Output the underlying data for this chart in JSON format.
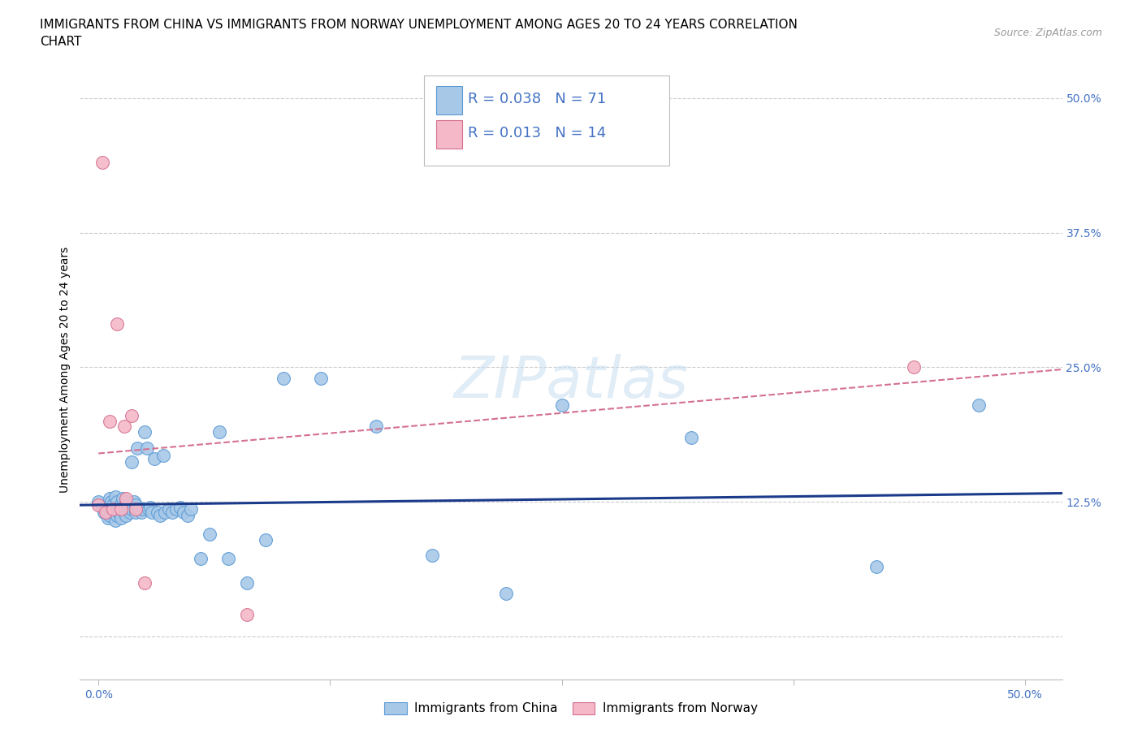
{
  "title_line1": "IMMIGRANTS FROM CHINA VS IMMIGRANTS FROM NORWAY UNEMPLOYMENT AMONG AGES 20 TO 24 YEARS CORRELATION",
  "title_line2": "CHART",
  "source_text": "Source: ZipAtlas.com",
  "ylabel": "Unemployment Among Ages 20 to 24 years",
  "x_ticks": [
    0.0,
    0.125,
    0.25,
    0.375,
    0.5
  ],
  "y_ticks": [
    0.0,
    0.125,
    0.25,
    0.375,
    0.5
  ],
  "xlim": [
    -0.01,
    0.52
  ],
  "ylim": [
    -0.04,
    0.535
  ],
  "china_color": "#a8c8e8",
  "china_edge_color": "#5b9bd5",
  "norway_color": "#f4b8c8",
  "norway_edge_color": "#d47090",
  "china_line_color": "#1a3a8a",
  "norway_line_color": "#d47090",
  "grid_color": "#cccccc",
  "background_color": "#ffffff",
  "watermark": "ZIPatlas",
  "r_color": "#4472c4",
  "legend_label_china": "Immigrants from China",
  "legend_label_norway": "Immigrants from Norway",
  "china_scatter_x": [
    0.0,
    0.002,
    0.003,
    0.004,
    0.005,
    0.005,
    0.006,
    0.006,
    0.007,
    0.007,
    0.008,
    0.008,
    0.009,
    0.009,
    0.01,
    0.01,
    0.01,
    0.011,
    0.011,
    0.012,
    0.012,
    0.013,
    0.013,
    0.014,
    0.014,
    0.015,
    0.015,
    0.016,
    0.016,
    0.017,
    0.018,
    0.018,
    0.019,
    0.02,
    0.02,
    0.021,
    0.022,
    0.023,
    0.024,
    0.025,
    0.026,
    0.027,
    0.028,
    0.029,
    0.03,
    0.032,
    0.033,
    0.035,
    0.036,
    0.038,
    0.04,
    0.042,
    0.044,
    0.046,
    0.048,
    0.05,
    0.055,
    0.06,
    0.065,
    0.07,
    0.08,
    0.09,
    0.1,
    0.12,
    0.15,
    0.18,
    0.22,
    0.25,
    0.32,
    0.42,
    0.475
  ],
  "china_scatter_y": [
    0.125,
    0.12,
    0.115,
    0.118,
    0.122,
    0.11,
    0.128,
    0.112,
    0.125,
    0.118,
    0.115,
    0.122,
    0.108,
    0.13,
    0.118,
    0.112,
    0.125,
    0.12,
    0.115,
    0.122,
    0.11,
    0.118,
    0.128,
    0.115,
    0.12,
    0.125,
    0.112,
    0.118,
    0.122,
    0.115,
    0.162,
    0.118,
    0.125,
    0.115,
    0.122,
    0.175,
    0.118,
    0.115,
    0.118,
    0.19,
    0.175,
    0.118,
    0.12,
    0.115,
    0.165,
    0.115,
    0.112,
    0.168,
    0.115,
    0.118,
    0.115,
    0.118,
    0.12,
    0.115,
    0.112,
    0.118,
    0.072,
    0.095,
    0.19,
    0.072,
    0.05,
    0.09,
    0.24,
    0.24,
    0.195,
    0.075,
    0.04,
    0.215,
    0.185,
    0.065,
    0.215
  ],
  "norway_scatter_x": [
    0.0,
    0.002,
    0.004,
    0.006,
    0.008,
    0.01,
    0.012,
    0.014,
    0.015,
    0.018,
    0.02,
    0.025,
    0.08,
    0.44
  ],
  "norway_scatter_y": [
    0.122,
    0.44,
    0.115,
    0.2,
    0.118,
    0.29,
    0.118,
    0.195,
    0.128,
    0.205,
    0.118,
    0.05,
    0.02,
    0.25
  ],
  "china_trend_x": [
    -0.01,
    0.52
  ],
  "china_trend_y": [
    0.122,
    0.133
  ],
  "norway_trend_x": [
    0.0,
    0.52
  ],
  "norway_trend_y": [
    0.17,
    0.248
  ],
  "title_fontsize": 11,
  "axis_label_fontsize": 10,
  "tick_fontsize": 10,
  "legend_fontsize": 13,
  "watermark_fontsize": 52
}
